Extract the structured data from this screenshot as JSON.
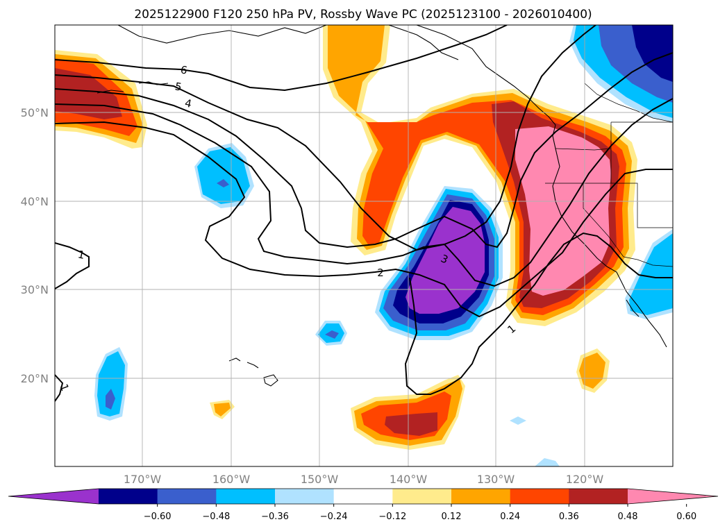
{
  "title": "2025122900 F120 250 hPa PV, Rossby Wave PC (2025123100 - 2026010400)",
  "map": {
    "lon_labels": [
      "170°W",
      "160°W",
      "150°W",
      "140°W",
      "130°W",
      "120°W"
    ],
    "lat_labels": [
      "50°N",
      "40°N",
      "30°N",
      "20°N"
    ]
  },
  "contours": {
    "labels": [
      "6",
      "5",
      "4",
      "3",
      "2",
      "1",
      "1",
      "1"
    ]
  },
  "colorbar": {
    "ticks": [
      "−0.60",
      "−0.48",
      "−0.36",
      "−0.24",
      "−0.12",
      "0.12",
      "0.24",
      "0.36",
      "0.48",
      "0.60"
    ],
    "colors": [
      "#9a32cd",
      "#00008b",
      "#3a5fcd",
      "#00bfff",
      "#b0e2ff",
      "#ffffff",
      "#ffeb8c",
      "#ffa500",
      "#ff4500",
      "#b22222",
      "#ff88b0"
    ]
  }
}
